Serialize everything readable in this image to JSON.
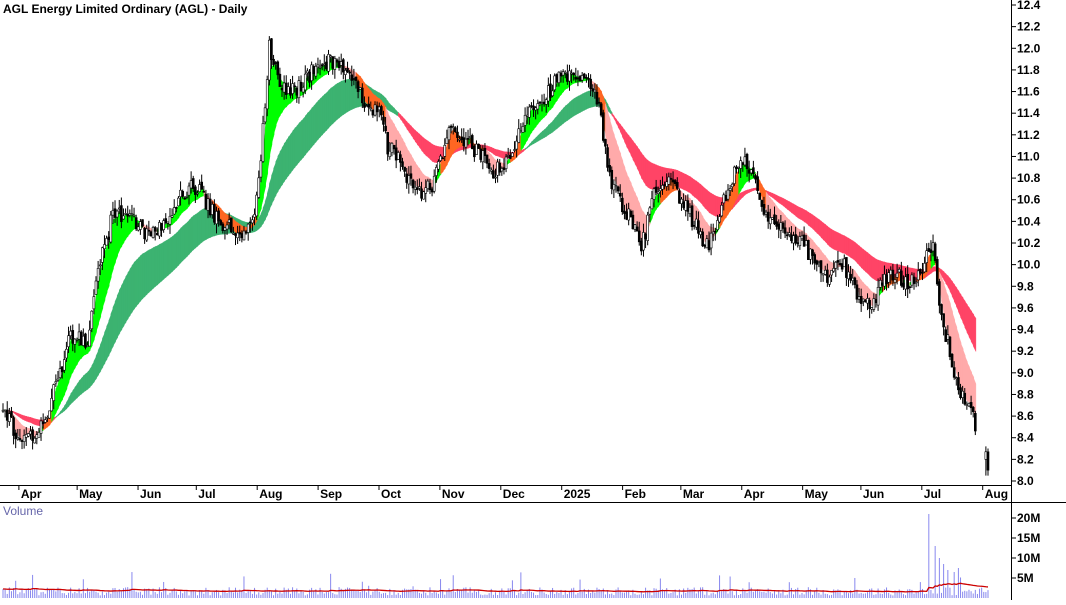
{
  "chart_data": {
    "type": "candlestick",
    "title": "AGL Energy Limited Ordinary (AGL) - Daily",
    "price_axis": {
      "ylim": [
        7.92,
        12.45
      ],
      "ticks": [
        "12.4",
        "12.2",
        "12.0",
        "11.8",
        "11.6",
        "11.4",
        "11.2",
        "11.0",
        "10.8",
        "10.6",
        "10.4",
        "10.2",
        "10.0",
        "9.8",
        "9.6",
        "9.4",
        "9.2",
        "9.0",
        "8.8",
        "8.6",
        "8.4",
        "8.2",
        "8.0"
      ]
    },
    "time_axis": {
      "labels": [
        "Apr",
        "May",
        "Jun",
        "Jul",
        "Aug",
        "Sep",
        "Oct",
        "Nov",
        "Dec",
        "2025",
        "Feb",
        "Mar",
        "Apr",
        "May",
        "Jun",
        "Jul",
        "Aug"
      ],
      "total_days": 372
    },
    "price_keyframes": [
      [
        0,
        8.72
      ],
      [
        8,
        8.32
      ],
      [
        20,
        8.55
      ],
      [
        32,
        9.35
      ],
      [
        40,
        9.25
      ],
      [
        45,
        9.95
      ],
      [
        52,
        10.45
      ],
      [
        60,
        10.45
      ],
      [
        70,
        10.25
      ],
      [
        80,
        10.52
      ],
      [
        90,
        10.75
      ],
      [
        100,
        10.45
      ],
      [
        110,
        10.3
      ],
      [
        118,
        10.35
      ],
      [
        122,
        11.0
      ],
      [
        126,
        12.0
      ],
      [
        132,
        11.6
      ],
      [
        140,
        11.65
      ],
      [
        150,
        11.85
      ],
      [
        158,
        11.9
      ],
      [
        166,
        11.65
      ],
      [
        172,
        11.5
      ],
      [
        178,
        11.4
      ],
      [
        182,
        11.1
      ],
      [
        188,
        10.95
      ],
      [
        196,
        10.65
      ],
      [
        204,
        10.75
      ],
      [
        210,
        11.2
      ],
      [
        216,
        11.2
      ],
      [
        224,
        11.05
      ],
      [
        232,
        10.85
      ],
      [
        240,
        10.95
      ],
      [
        248,
        11.45
      ],
      [
        256,
        11.55
      ],
      [
        264,
        11.75
      ],
      [
        272,
        11.7
      ],
      [
        280,
        11.65
      ],
      [
        284,
        11.2
      ],
      [
        288,
        10.75
      ],
      [
        296,
        10.45
      ],
      [
        302,
        10.15
      ],
      [
        308,
        10.65
      ],
      [
        316,
        10.75
      ],
      [
        322,
        10.55
      ],
      [
        328,
        10.35
      ],
      [
        334,
        10.15
      ],
      [
        340,
        10.55
      ],
      [
        346,
        10.85
      ],
      [
        352,
        10.95
      ],
      [
        356,
        10.75
      ],
      [
        360,
        10.45
      ],
      [
        368,
        10.35
      ],
      [
        376,
        10.25
      ],
      [
        384,
        10.05
      ],
      [
        390,
        9.85
      ],
      [
        396,
        10.05
      ],
      [
        404,
        9.75
      ],
      [
        410,
        9.6
      ],
      [
        416,
        9.85
      ],
      [
        422,
        9.9
      ],
      [
        428,
        9.85
      ],
      [
        434,
        9.95
      ],
      [
        440,
        10.15
      ],
      [
        444,
        9.5
      ],
      [
        448,
        9.2
      ],
      [
        452,
        8.85
      ],
      [
        456,
        8.7
      ],
      [
        460,
        8.52
      ]
    ],
    "gap_after_day": 460,
    "final_bars": [
      [
        465,
        8.2,
        8.32,
        8.05,
        8.27
      ],
      [
        466,
        8.27,
        8.3,
        8.05,
        8.1
      ]
    ],
    "guppy_short_periods": [
      3,
      5,
      8,
      10,
      12,
      15
    ],
    "guppy_long_periods": [
      30,
      35,
      40,
      45,
      50,
      60
    ],
    "guppy_colors": {
      "short_up": "#00ff00",
      "short_down": "#ffaaaa",
      "long_up": "#3cb371",
      "long_down": "#ff4466",
      "overlap": "#ff6622"
    },
    "volume_label": "Volume",
    "volume_axis": {
      "ticks": [
        "20M",
        "15M",
        "10M",
        "5M"
      ],
      "ylim": [
        0,
        22
      ]
    },
    "volume_ma_color": "#cc0000",
    "volume_bar_color": "#8888ee",
    "volume_spikes": [
      [
        438,
        21
      ],
      [
        441,
        13
      ],
      [
        443,
        10
      ],
      [
        445,
        8.5
      ],
      [
        447,
        7
      ],
      [
        450,
        6.5
      ],
      [
        452,
        7.5
      ]
    ],
    "volume_base": 1.6
  }
}
